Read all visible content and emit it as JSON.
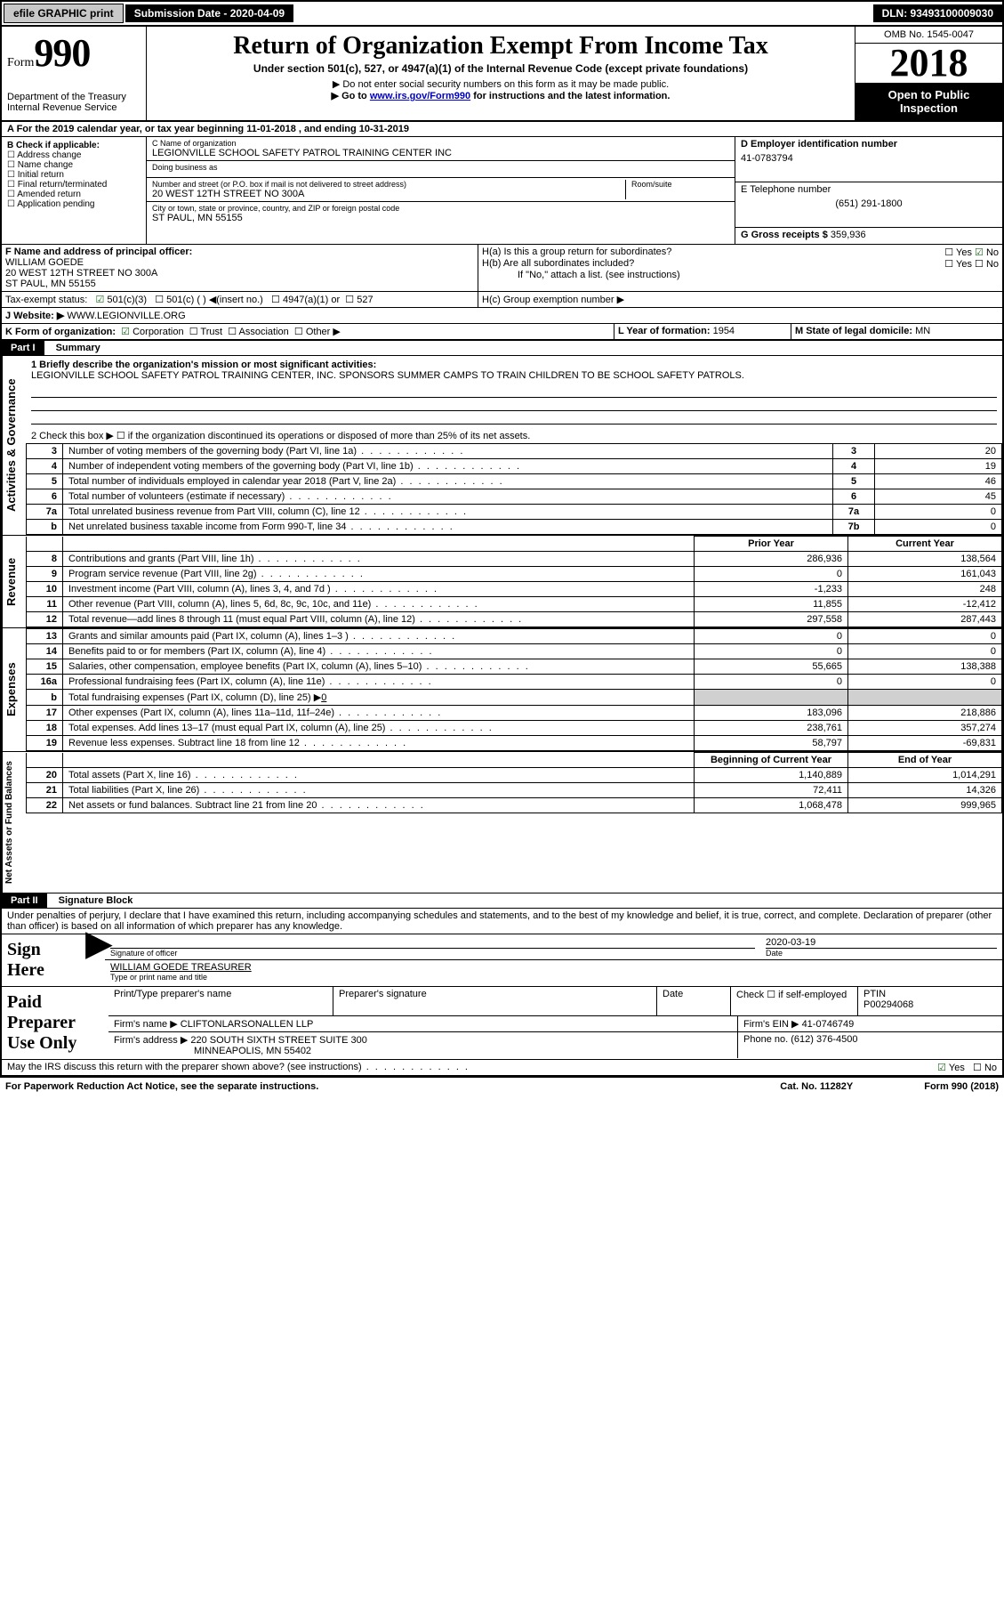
{
  "topbar": {
    "efile": "efile GRAPHIC print",
    "submission_label": "Submission Date - 2020-04-09",
    "dln": "DLN: 93493100009030"
  },
  "header": {
    "form_word": "Form",
    "form_num": "990",
    "dept": "Department of the Treasury",
    "irs": "Internal Revenue Service",
    "title": "Return of Organization Exempt From Income Tax",
    "subtitle": "Under section 501(c), 527, or 4947(a)(1) of the Internal Revenue Code (except private foundations)",
    "note1": "▶ Do not enter social security numbers on this form as it may be made public.",
    "note2_pre": "▶ Go to ",
    "note2_link": "www.irs.gov/Form990",
    "note2_post": " for instructions and the latest information.",
    "omb": "OMB No. 1545-0047",
    "year": "2018",
    "inspection": "Open to Public Inspection"
  },
  "line_a": "A For the 2019 calendar year, or tax year beginning 11-01-2018    , and ending 10-31-2019",
  "section_b": {
    "label": "B Check if applicable:",
    "items": [
      "Address change",
      "Name change",
      "Initial return",
      "Final return/terminated",
      "Amended return",
      "Application pending"
    ]
  },
  "section_c": {
    "name_label": "C Name of organization",
    "name": "LEGIONVILLE SCHOOL SAFETY PATROL TRAINING CENTER INC",
    "dba_label": "Doing business as",
    "dba": "",
    "addr_label": "Number and street (or P.O. box if mail is not delivered to street address)",
    "addr": "20 WEST 12TH STREET NO 300A",
    "room_label": "Room/suite",
    "city_label": "City or town, state or province, country, and ZIP or foreign postal code",
    "city": "ST PAUL, MN  55155"
  },
  "section_d": {
    "label": "D Employer identification number",
    "ein": "41-0783794",
    "phone_label": "E Telephone number",
    "phone": "(651) 291-1800",
    "gross_label": "G Gross receipts $",
    "gross": "359,936"
  },
  "section_f": {
    "label": "F  Name and address of principal officer:",
    "name": "WILLIAM GOEDE",
    "addr1": "20 WEST 12TH STREET NO 300A",
    "addr2": "ST PAUL, MN  55155"
  },
  "section_h": {
    "ha": "H(a)  Is this a group return for subordinates?",
    "hb": "H(b)  Are all subordinates included?",
    "hb_note": "If \"No,\" attach a list. (see instructions)",
    "hc": "H(c)  Group exemption number ▶"
  },
  "tax_exempt": {
    "label": "Tax-exempt status:",
    "o1": "501(c)(3)",
    "o2": "501(c) (  ) ◀(insert no.)",
    "o3": "4947(a)(1) or",
    "o4": "527"
  },
  "website": {
    "label": "J   Website: ▶",
    "value": "WWW.LEGIONVILLE.ORG"
  },
  "section_k": {
    "label": "K Form of organization:",
    "corp": "Corporation",
    "trust": "Trust",
    "assoc": "Association",
    "other": "Other ▶"
  },
  "section_l": {
    "label": "L Year of formation:",
    "value": "1954"
  },
  "section_m": {
    "label": "M State of legal domicile:",
    "value": "MN"
  },
  "part1": {
    "label": "Part I",
    "title": "Summary",
    "q1_label": "1   Briefly describe the organization's mission or most significant activities:",
    "q1_text": "LEGIONVILLE SCHOOL SAFETY PATROL TRAINING CENTER, INC. SPONSORS SUMMER CAMPS TO TRAIN CHILDREN TO BE SCHOOL SAFETY PATROLS.",
    "q2": "2   Check this box ▶ ☐  if the organization discontinued its operations or disposed of more than 25% of its net assets.",
    "vert_activities": "Activities & Governance",
    "vert_revenue": "Revenue",
    "vert_expenses": "Expenses",
    "vert_net": "Net Assets or Fund Balances"
  },
  "governance_rows": [
    {
      "n": "3",
      "d": "Number of voting members of the governing body (Part VI, line 1a)",
      "box": "3",
      "v": "20"
    },
    {
      "n": "4",
      "d": "Number of independent voting members of the governing body (Part VI, line 1b)",
      "box": "4",
      "v": "19"
    },
    {
      "n": "5",
      "d": "Total number of individuals employed in calendar year 2018 (Part V, line 2a)",
      "box": "5",
      "v": "46"
    },
    {
      "n": "6",
      "d": "Total number of volunteers (estimate if necessary)",
      "box": "6",
      "v": "45"
    },
    {
      "n": "7a",
      "d": "Total unrelated business revenue from Part VIII, column (C), line 12",
      "box": "7a",
      "v": "0"
    },
    {
      "n": "b",
      "d": "Net unrelated business taxable income from Form 990-T, line 34",
      "box": "7b",
      "v": "0"
    }
  ],
  "col_headers": {
    "prior": "Prior Year",
    "current": "Current Year"
  },
  "revenue_rows": [
    {
      "n": "8",
      "d": "Contributions and grants (Part VIII, line 1h)",
      "p": "286,936",
      "c": "138,564"
    },
    {
      "n": "9",
      "d": "Program service revenue (Part VIII, line 2g)",
      "p": "0",
      "c": "161,043"
    },
    {
      "n": "10",
      "d": "Investment income (Part VIII, column (A), lines 3, 4, and 7d )",
      "p": "-1,233",
      "c": "248"
    },
    {
      "n": "11",
      "d": "Other revenue (Part VIII, column (A), lines 5, 6d, 8c, 9c, 10c, and 11e)",
      "p": "11,855",
      "c": "-12,412"
    },
    {
      "n": "12",
      "d": "Total revenue—add lines 8 through 11 (must equal Part VIII, column (A), line 12)",
      "p": "297,558",
      "c": "287,443"
    }
  ],
  "expense_rows": [
    {
      "n": "13",
      "d": "Grants and similar amounts paid (Part IX, column (A), lines 1–3 )",
      "p": "0",
      "c": "0"
    },
    {
      "n": "14",
      "d": "Benefits paid to or for members (Part IX, column (A), line 4)",
      "p": "0",
      "c": "0"
    },
    {
      "n": "15",
      "d": "Salaries, other compensation, employee benefits (Part IX, column (A), lines 5–10)",
      "p": "55,665",
      "c": "138,388"
    },
    {
      "n": "16a",
      "d": "Professional fundraising fees (Part IX, column (A), line 11e)",
      "p": "0",
      "c": "0"
    }
  ],
  "expense_b": {
    "n": "b",
    "d": "Total fundraising expenses (Part IX, column (D), line 25) ▶",
    "v": "0"
  },
  "expense_rows2": [
    {
      "n": "17",
      "d": "Other expenses (Part IX, column (A), lines 11a–11d, 11f–24e)",
      "p": "183,096",
      "c": "218,886"
    },
    {
      "n": "18",
      "d": "Total expenses. Add lines 13–17 (must equal Part IX, column (A), line 25)",
      "p": "238,761",
      "c": "357,274"
    },
    {
      "n": "19",
      "d": "Revenue less expenses. Subtract line 18 from line 12",
      "p": "58,797",
      "c": "-69,831"
    }
  ],
  "net_headers": {
    "begin": "Beginning of Current Year",
    "end": "End of Year"
  },
  "net_rows": [
    {
      "n": "20",
      "d": "Total assets (Part X, line 16)",
      "p": "1,140,889",
      "c": "1,014,291"
    },
    {
      "n": "21",
      "d": "Total liabilities (Part X, line 26)",
      "p": "72,411",
      "c": "14,326"
    },
    {
      "n": "22",
      "d": "Net assets or fund balances. Subtract line 21 from line 20",
      "p": "1,068,478",
      "c": "999,965"
    }
  ],
  "part2": {
    "label": "Part II",
    "title": "Signature Block",
    "decl": "Under penalties of perjury, I declare that I have examined this return, including accompanying schedules and statements, and to the best of my knowledge and belief, it is true, correct, and complete. Declaration of preparer (other than officer) is based on all information of which preparer has any knowledge."
  },
  "sign": {
    "here": "Sign Here",
    "sig_label": "Signature of officer",
    "date_label": "Date",
    "date": "2020-03-19",
    "name": "WILLIAM GOEDE TREASURER",
    "name_label": "Type or print name and title"
  },
  "paid": {
    "label": "Paid Preparer Use Only",
    "c1": "Print/Type preparer's name",
    "c2": "Preparer's signature",
    "c3": "Date",
    "c4_pre": "Check ☐ if self-employed",
    "c5_label": "PTIN",
    "c5": "P00294068",
    "firm_label": "Firm's name    ▶",
    "firm": "CLIFTONLARSONALLEN LLP",
    "ein_label": "Firm's EIN ▶",
    "ein": "41-0746749",
    "addr_label": "Firm's address ▶",
    "addr1": "220 SOUTH SIXTH STREET SUITE 300",
    "addr2": "MINNEAPOLIS, MN  55402",
    "phone_label": "Phone no.",
    "phone": "(612) 376-4500"
  },
  "discuss": "May the IRS discuss this return with the preparer shown above? (see instructions)",
  "footer": {
    "left": "For Paperwork Reduction Act Notice, see the separate instructions.",
    "mid": "Cat. No. 11282Y",
    "right": "Form 990 (2018)"
  }
}
